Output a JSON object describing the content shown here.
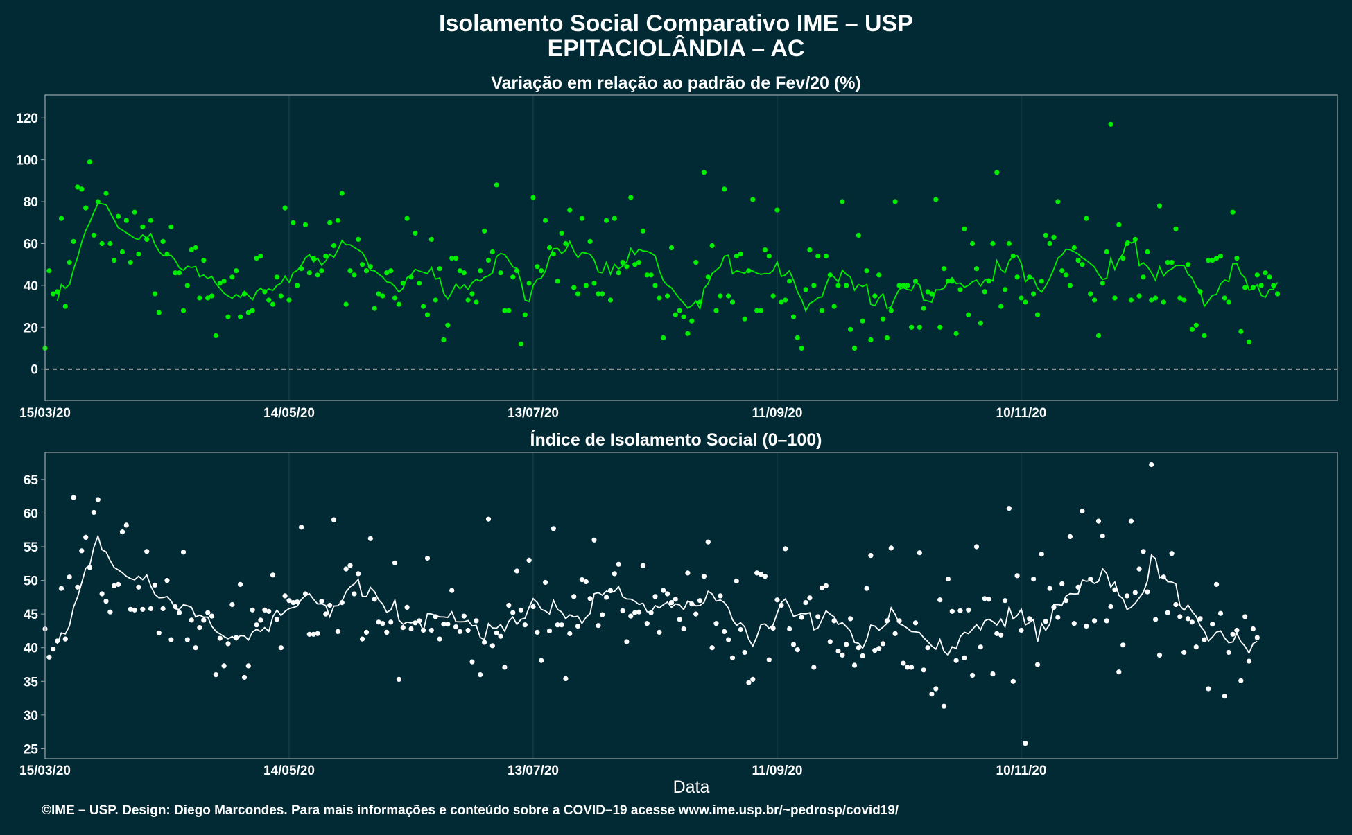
{
  "title": "Isolamento Social Comparativo IME – USP",
  "subtitle": "EPITACIOLÂNDIA – AC",
  "footer": "©IME – USP. Design: Diego Marcondes. Para mais informações e conteúdo sobre a COVID–19 acesse www.ime.usp.br/~pedrosp/covid19/",
  "colors": {
    "background": "#022a35",
    "variation_points": "#00ee00",
    "variation_negative_points": "#dd0000",
    "index_points": "#ffffff"
  },
  "chart_data": [
    {
      "type": "scatter",
      "title": "Variação em relação ao padrão de Fev/20 (%)",
      "xlabel": "",
      "ylabel": "",
      "x_start": "15/03/20",
      "x_ticks": [
        "15/03/20",
        "14/05/20",
        "13/07/20",
        "11/09/20",
        "10/11/20"
      ],
      "y_ticks": [
        0,
        20,
        40,
        60,
        80,
        100,
        120
      ],
      "ylim": [
        -15,
        131
      ],
      "reference_line": 0,
      "grid": true,
      "series": [
        {
          "values": [
            10,
            47,
            36,
            37,
            72,
            30,
            51,
            61,
            87,
            86,
            77,
            99,
            64,
            80,
            60,
            84,
            60,
            52,
            73,
            56,
            71,
            51,
            75,
            55,
            68,
            62,
            71,
            36,
            27,
            61,
            55,
            68,
            46,
            46,
            28,
            40,
            57,
            58,
            34,
            52,
            34,
            35,
            16,
            41,
            42,
            25,
            44,
            47,
            25,
            36,
            27,
            28,
            53,
            54,
            37,
            33,
            31,
            44,
            35,
            77,
            33,
            70,
            40,
            48,
            69,
            46,
            53,
            45,
            47,
            54,
            70,
            59,
            71,
            84,
            31,
            47,
            45,
            62,
            50,
            47,
            49,
            29,
            36,
            35,
            46,
            47,
            34,
            31,
            41,
            72,
            44,
            65,
            41,
            30,
            26,
            62,
            33,
            48,
            14,
            21,
            53,
            53,
            47,
            46,
            33,
            36,
            32,
            47,
            66,
            52,
            56,
            88,
            46,
            28,
            28,
            44,
            47,
            12,
            26,
            41,
            82,
            49,
            47,
            71,
            58,
            55,
            42,
            65,
            60,
            76,
            39,
            36,
            72,
            40,
            61,
            41,
            36,
            36,
            71,
            33,
            72,
            46,
            51,
            49,
            82,
            50,
            51,
            66,
            45,
            45,
            40,
            34,
            15,
            35,
            58,
            26,
            28,
            25,
            17,
            23,
            51,
            32,
            94,
            44,
            59,
            28,
            35,
            86,
            35,
            32,
            54,
            55,
            24,
            47,
            81,
            28,
            28,
            57,
            54,
            35,
            76,
            32,
            33,
            42,
            25,
            15,
            10,
            38,
            57,
            40,
            54,
            28,
            54,
            45,
            30,
            40,
            80,
            40,
            19,
            10,
            64,
            23,
            47,
            14,
            35,
            45,
            24,
            15,
            28,
            80,
            40,
            40,
            40,
            20,
            42,
            20,
            29,
            37,
            36,
            81,
            20,
            48,
            42,
            42,
            17,
            38,
            67,
            26,
            60,
            48,
            22,
            37,
            42,
            60,
            94,
            30,
            38,
            60,
            54,
            44,
            34,
            32,
            44,
            36,
            26,
            42,
            64,
            60,
            63,
            80,
            47,
            45,
            40,
            58,
            52,
            50,
            72,
            36,
            33,
            16,
            41,
            56,
            117,
            34,
            69,
            53,
            60,
            33,
            62,
            35,
            44,
            56,
            33,
            34,
            78,
            32,
            51,
            51,
            67,
            34,
            33,
            50,
            19,
            21,
            37,
            16,
            52,
            52,
            53,
            54,
            34,
            32,
            75,
            53,
            18,
            39,
            13,
            39,
            45,
            40,
            46,
            44,
            40,
            36
          ]
        }
      ]
    },
    {
      "type": "scatter",
      "title": "Índice de Isolamento Social (0–100)",
      "xlabel": "Data",
      "ylabel": "",
      "x_start": "15/03/20",
      "x_ticks": [
        "15/03/20",
        "14/05/20",
        "13/07/20",
        "11/09/20",
        "10/11/20"
      ],
      "y_ticks": [
        25,
        30,
        35,
        40,
        45,
        50,
        55,
        60,
        65
      ],
      "ylim": [
        23.5,
        69
      ],
      "grid": true,
      "series": [
        {
          "values": [
            42.8,
            38.6,
            39.8,
            41,
            48.8,
            41.3,
            50.5,
            62.3,
            49,
            54.4,
            56.4,
            51.9,
            60.1,
            62,
            48,
            46.9,
            45.3,
            49.2,
            49.4,
            57.2,
            58.2,
            45.7,
            45.6,
            49,
            45.7,
            54.3,
            45.8,
            49.3,
            42.2,
            45.8,
            50,
            41.2,
            46.1,
            45.2,
            54.2,
            41.2,
            44.1,
            40,
            43,
            44.1,
            45.2,
            44.7,
            36,
            41.4,
            37.3,
            40.6,
            46.4,
            41.5,
            49.4,
            35.6,
            37.3,
            45.6,
            43.4,
            44.1,
            45.6,
            45.4,
            50.8,
            44.2,
            40,
            47.7,
            47,
            46.7,
            46.8,
            57.9,
            48,
            42,
            42,
            42.1,
            46.9,
            45,
            46.3,
            59,
            42.4,
            46.7,
            51.7,
            52.2,
            48,
            51,
            41.3,
            42.3,
            56.2,
            47.2,
            43.8,
            43.6,
            42.3,
            43.8,
            52.6,
            35.3,
            43,
            46,
            42.8,
            43.7,
            44,
            42.6,
            53.3,
            42.6,
            44.6,
            41.3,
            43.5,
            43.5,
            48.5,
            43.1,
            42.4,
            44.7,
            42.6,
            37.9,
            44,
            36,
            40.8,
            59.1,
            40.3,
            42.2,
            41.7,
            37.1,
            46.3,
            45.2,
            51.4,
            45.6,
            43.4,
            53,
            46.1,
            42.3,
            38.1,
            49.7,
            42.5,
            57.7,
            43.4,
            43.4,
            35.4,
            42.1,
            47.6,
            43.2,
            50.1,
            49.8,
            47.3,
            56,
            43.3,
            44.9,
            47.5,
            48.5,
            51,
            52.4,
            45.5,
            40.9,
            44.7,
            45.2,
            45.3,
            52.2,
            43.6,
            45.2,
            47.6,
            42.3,
            48.5,
            48,
            46.7,
            47.2,
            44.2,
            42.8,
            51.1,
            46.5,
            45,
            47,
            50.6,
            55.7,
            40,
            43.6,
            47.7,
            42.4,
            41.2,
            38.5,
            49.9,
            42.7,
            39.3,
            34.8,
            35.3,
            51.1,
            50.9,
            50.6,
            38.2,
            42.9,
            47.1,
            46.3,
            54.7,
            42.8,
            40.5,
            39.7,
            44.5,
            46.7,
            47.4,
            37.1,
            44.6,
            48.9,
            49.2,
            40.9,
            44,
            39.5,
            38.9,
            40.5,
            44.3,
            37.4,
            40,
            38.8,
            48.8,
            53.7,
            39.6,
            39.9,
            40.6,
            44,
            54.8,
            42.1,
            44,
            37.7,
            37.1,
            37.1,
            43.7,
            54.1,
            36.7,
            40,
            33.1,
            33.9,
            47.1,
            31.3,
            50.2,
            45.4,
            38.1,
            45.5,
            38.5,
            45.6,
            35.9,
            55,
            40.1,
            47.3,
            47.2,
            36.1,
            42.1,
            41.9,
            47,
            60.7,
            35,
            50.7,
            42.6,
            25.8,
            44.3,
            50.2,
            37.5,
            53.9,
            43.9,
            48.8,
            46,
            44.5,
            49.5,
            47,
            56.5,
            43.6,
            49,
            60.3,
            43.2,
            50.2,
            44,
            58.8,
            56.6,
            44,
            46.1,
            48.6,
            36.4,
            40.4,
            47.7,
            58.8,
            48.2,
            51.7,
            54.3,
            48.3,
            67.2,
            44.2,
            38.9,
            50.5,
            45.2,
            54,
            46.4,
            44.6,
            39.3,
            44.3,
            43.8,
            40.1,
            44.3,
            41.2,
            33.9,
            43.5,
            49.4,
            45.1,
            32.8,
            39.3,
            42,
            42.6,
            35.1,
            44.6,
            38,
            42.8,
            41.5
          ]
        }
      ]
    }
  ]
}
